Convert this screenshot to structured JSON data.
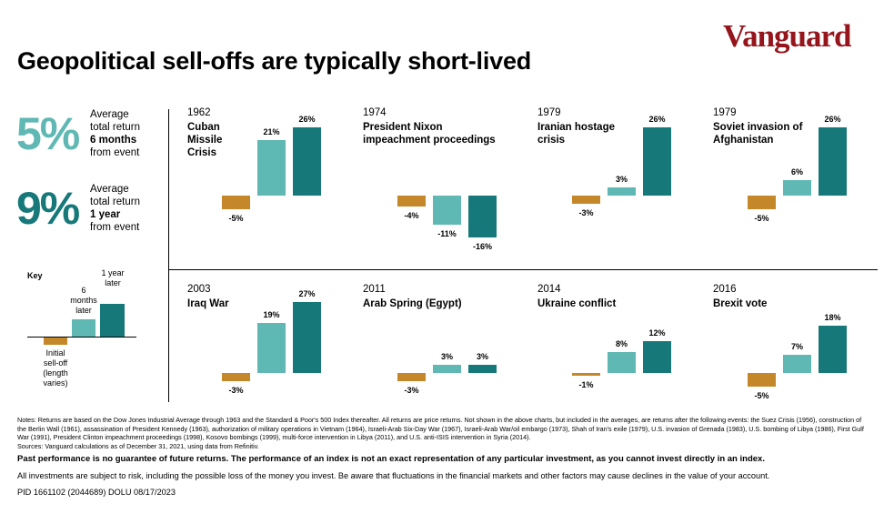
{
  "title": "Geopolitical sell-offs are typically short-lived",
  "logo_text": "Vanguard",
  "colors": {
    "selloff": "#c4882a",
    "six_months": "#5fb8b3",
    "one_year": "#17787a",
    "logo": "#96151d"
  },
  "summary": [
    {
      "value": "5%",
      "line1": "Average",
      "line2": "total return",
      "line3": "6 months",
      "line4": "from event"
    },
    {
      "value": "9%",
      "line1": "Average",
      "line2": "total return",
      "line3": "1 year",
      "line4": "from event"
    }
  ],
  "key": {
    "title": "Key",
    "six_months": "6 months later",
    "one_year": "1 year later",
    "selloff": "Initial sell-off (length varies)"
  },
  "chart_data": [
    {
      "type": "bar",
      "year": "1962",
      "title": "Cuban Missile Crisis",
      "categories": [
        "Initial sell-off",
        "6 months later",
        "1 year later"
      ],
      "values": [
        -5,
        21,
        26
      ],
      "labels": [
        "-5%",
        "21%",
        "26%"
      ]
    },
    {
      "type": "bar",
      "year": "1974",
      "title": "President Nixon impeachment proceedings",
      "categories": [
        "Initial sell-off",
        "6 months later",
        "1 year later"
      ],
      "values": [
        -4,
        -11,
        -16
      ],
      "labels": [
        "-4%",
        "-11%",
        "-16%"
      ]
    },
    {
      "type": "bar",
      "year": "1979",
      "title": "Iranian hostage crisis",
      "categories": [
        "Initial sell-off",
        "6 months later",
        "1 year later"
      ],
      "values": [
        -3,
        3,
        26
      ],
      "labels": [
        "-3%",
        "3%",
        "26%"
      ]
    },
    {
      "type": "bar",
      "year": "1979",
      "title": "Soviet invasion of Afghanistan",
      "categories": [
        "Initial sell-off",
        "6 months later",
        "1 year later"
      ],
      "values": [
        -5,
        6,
        26
      ],
      "labels": [
        "-5%",
        "6%",
        "26%"
      ]
    },
    {
      "type": "bar",
      "year": "2003",
      "title": "Iraq War",
      "categories": [
        "Initial sell-off",
        "6 months later",
        "1 year later"
      ],
      "values": [
        -3,
        19,
        27
      ],
      "labels": [
        "-3%",
        "19%",
        "27%"
      ]
    },
    {
      "type": "bar",
      "year": "2011",
      "title": "Arab Spring (Egypt)",
      "categories": [
        "Initial sell-off",
        "6 months later",
        "1 year later"
      ],
      "values": [
        -3,
        3,
        3
      ],
      "labels": [
        "-3%",
        "3%",
        "3%"
      ]
    },
    {
      "type": "bar",
      "year": "2014",
      "title": "Ukraine conflict",
      "categories": [
        "Initial sell-off",
        "6 months later",
        "1 year later"
      ],
      "values": [
        -1,
        8,
        12
      ],
      "labels": [
        "-1%",
        "8%",
        "12%"
      ]
    },
    {
      "type": "bar",
      "year": "2016",
      "title": "Brexit vote",
      "categories": [
        "Initial sell-off",
        "6 months later",
        "1 year later"
      ],
      "values": [
        -5,
        7,
        18
      ],
      "labels": [
        "-5%",
        "7%",
        "18%"
      ]
    }
  ],
  "notes": {
    "text": "Notes: Returns are based on the Dow Jones Industrial Average through 1963 and the Standard & Poor's 500 Index thereafter. All returns are price returns. Not shown in the above charts, but included in the averages, are returns after the following events: the Suez Crisis (1956), construction of the Berlin Wall (1961), assassination of President Kennedy (1963), authorization of military operations in Vietnam (1964), Israeli-Arab Six-Day War (1967), Israeli-Arab War/oil embargo (1973), Shah of Iran's exile (1979), U.S. invasion of Grenada (1983), U.S. bombing of Libya (1986), First Gulf War (1991), President Clinton impeachment proceedings (1998), Kosovo bombings (1999), multi-force intervention in Libya (2011), and U.S. anti-ISIS intervention in Syria (2014).",
    "sources": "Sources: Vanguard calculations as of December 31, 2021, using data from Refinitiv.",
    "past_performance": "Past performance is no guarantee of future returns. The performance of an index is not an exact representation of any particular investment, as you cannot invest directly in an index.",
    "risk": "All investments are subject to risk, including the possible loss of the money you invest. Be aware that fluctuations in the financial markets and other factors may cause declines in the value of your account.",
    "pid": "PID 1661102 (2044689) DOLU 08/17/2023"
  }
}
